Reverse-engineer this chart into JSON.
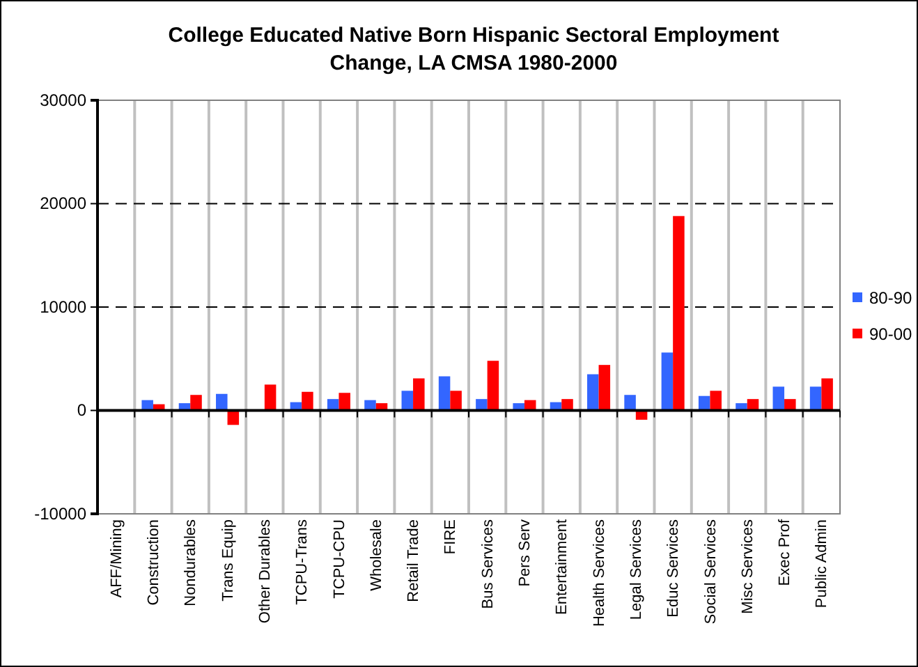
{
  "chart_data": {
    "type": "bar",
    "title": "College Educated Native Born Hispanic Sectoral Employment Change, LA CMSA 1980-2000",
    "categories": [
      "AFF/Mining",
      "Construction",
      "Nondurables",
      "Trans Equip",
      "Other Durables",
      "TCPU-Trans",
      "TCPU-CPU",
      "Wholesale",
      "Retail Trade",
      "FIRE",
      "Bus Services",
      "Pers Serv",
      "Entertainment",
      "Health Services",
      "Legal Services",
      "Educ Services",
      "Social Services",
      "Misc Services",
      "Exec Prof",
      "Public Admin"
    ],
    "series": [
      {
        "name": "80-90",
        "color": "#3366ff",
        "values": [
          0,
          1000,
          700,
          1600,
          0,
          800,
          1100,
          1000,
          1900,
          3300,
          1100,
          700,
          800,
          3500,
          1500,
          5600,
          1400,
          700,
          2300,
          2300
        ]
      },
      {
        "name": "90-00",
        "color": "#ff0000",
        "values": [
          0,
          600,
          1500,
          -1400,
          2500,
          1800,
          1700,
          700,
          3100,
          1900,
          4800,
          1000,
          1100,
          4400,
          -900,
          18800,
          1900,
          1100,
          1100,
          3100
        ]
      }
    ],
    "ylim": [
      -10000,
      30000
    ],
    "yticks": [
      -10000,
      0,
      10000,
      20000,
      30000
    ],
    "grid": true,
    "legend": "right"
  }
}
